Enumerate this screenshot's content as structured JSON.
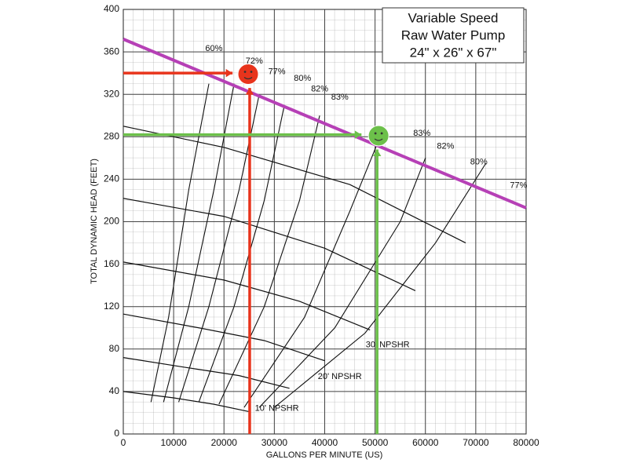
{
  "chart_data": {
    "type": "line",
    "title": [
      "Variable Speed",
      "Raw Water Pump",
      "24\" x 26\" x 67\""
    ],
    "x_label": "GALLONS PER MINUTE (US)",
    "y_label": "TOTAL DYNAMIC HEAD (FEET)",
    "xlim": [
      0,
      80000
    ],
    "ylim": [
      0,
      400
    ],
    "xticks": [
      0,
      10000,
      20000,
      30000,
      40000,
      50000,
      60000,
      70000,
      80000
    ],
    "yticks": [
      0,
      40,
      80,
      120,
      160,
      200,
      240,
      280,
      320,
      360,
      400
    ],
    "grid": true,
    "head_curves": [
      {
        "color": "#111111",
        "x": [
          0,
          20000,
          45000,
          68000
        ],
        "values": [
          290,
          270,
          235,
          180
        ]
      },
      {
        "color": "#111111",
        "x": [
          0,
          20000,
          40000,
          58000
        ],
        "values": [
          222,
          205,
          175,
          135
        ]
      },
      {
        "color": "#111111",
        "x": [
          0,
          20000,
          35000,
          49000
        ],
        "values": [
          162,
          145,
          125,
          98
        ]
      },
      {
        "color": "#111111",
        "x": [
          0,
          15000,
          28000,
          40000
        ],
        "values": [
          113,
          100,
          88,
          69
        ]
      },
      {
        "color": "#111111",
        "x": [
          0,
          12000,
          23000,
          33000
        ],
        "values": [
          72,
          63,
          55,
          43
        ]
      },
      {
        "color": "#111111",
        "x": [
          0,
          10000,
          18000,
          25000
        ],
        "values": [
          40,
          34,
          28,
          21
        ]
      }
    ],
    "efficiency_curves": [
      {
        "color": "#111111",
        "x": [
          5500,
          9000,
          13000,
          17000
        ],
        "values": [
          30,
          110,
          230,
          330
        ]
      },
      {
        "color": "#111111",
        "x": [
          8000,
          13000,
          18000,
          22000
        ],
        "values": [
          30,
          120,
          230,
          330
        ]
      },
      {
        "color": "#111111",
        "x": [
          11000,
          17000,
          23000,
          27000
        ],
        "values": [
          30,
          120,
          230,
          320
        ]
      },
      {
        "color": "#111111",
        "x": [
          15000,
          22000,
          28000,
          32000
        ],
        "values": [
          30,
          120,
          220,
          310
        ]
      },
      {
        "color": "#111111",
        "x": [
          19000,
          28000,
          35000,
          39000
        ],
        "values": [
          28,
          120,
          220,
          300
        ]
      },
      {
        "color": "#111111",
        "x": [
          24000,
          36000,
          45000,
          51000
        ],
        "values": [
          25,
          110,
          210,
          280
        ]
      },
      {
        "color": "#111111",
        "x": [
          27000,
          42000,
          55000,
          60000
        ],
        "values": [
          25,
          100,
          200,
          260
        ]
      },
      {
        "color": "#111111",
        "x": [
          30000,
          48000,
          62000,
          72000
        ],
        "values": [
          25,
          95,
          180,
          255
        ]
      }
    ],
    "system_curve": {
      "color": "#b640b6",
      "x": [
        0,
        80000
      ],
      "values": [
        372,
        213
      ]
    },
    "arrows": [
      {
        "color": "#e8341c",
        "x": [
          0,
          21700
        ],
        "values": [
          340,
          340
        ]
      },
      {
        "color": "#e8341c",
        "x": [
          25100,
          25100
        ],
        "values": [
          0,
          326
        ]
      },
      {
        "color": "#6cc04a",
        "x": [
          0,
          47300
        ],
        "values": [
          282,
          282
        ]
      },
      {
        "color": "#6cc04a",
        "x": [
          50400,
          50400
        ],
        "values": [
          0,
          268
        ]
      }
    ],
    "markers": [
      {
        "color": "#e8341c",
        "x": 24800,
        "y": 339
      },
      {
        "color": "#6cc04a",
        "x": 50700,
        "y": 281
      }
    ],
    "annotations": [
      {
        "text": "60%",
        "x": 18000,
        "y": 363
      },
      {
        "text": "72%",
        "x": 26000,
        "y": 351
      },
      {
        "text": "77%",
        "x": 30500,
        "y": 341
      },
      {
        "text": "80%",
        "x": 35600,
        "y": 335
      },
      {
        "text": "82%",
        "x": 39000,
        "y": 325
      },
      {
        "text": "83%",
        "x": 43000,
        "y": 317
      },
      {
        "text": "83%",
        "x": 59300,
        "y": 283
      },
      {
        "text": "82%",
        "x": 64000,
        "y": 271
      },
      {
        "text": "80%",
        "x": 70600,
        "y": 256
      },
      {
        "text": "77%",
        "x": 78500,
        "y": 234
      },
      {
        "text": "10' NPSHR",
        "x": 30500,
        "y": 24
      },
      {
        "text": "20' NPSHR",
        "x": 43000,
        "y": 54
      },
      {
        "text": "30' NPSHR",
        "x": 52500,
        "y": 84
      }
    ]
  }
}
